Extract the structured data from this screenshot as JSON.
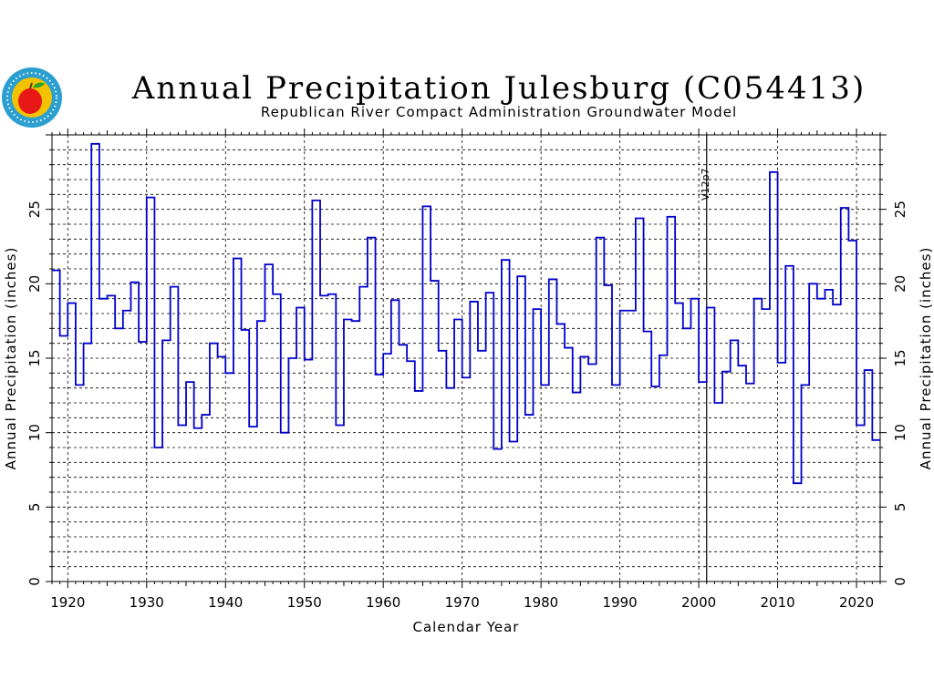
{
  "chart_data": {
    "type": "line",
    "title": "Annual Precipitation Julesburg (C054413)",
    "subtitle": "Republican River Compact Administration Groundwater Model",
    "xlabel": "Calendar Year",
    "ylabel_left": "Annual Precipitation (inches)",
    "ylabel_right": "Annual Precipitation (inches)",
    "xlim": [
      1918,
      2023
    ],
    "ylim": [
      0,
      30
    ],
    "x_ticks": [
      1920,
      1930,
      1940,
      1950,
      1960,
      1970,
      1980,
      1990,
      2000,
      2010,
      2020
    ],
    "y_ticks": [
      0,
      5,
      10,
      15,
      20,
      25
    ],
    "grid": true,
    "step": true,
    "marker_line": {
      "x": 2001,
      "label": "V12p7"
    },
    "series": [
      {
        "color": "#0000cc",
        "years": [
          1918,
          1919,
          1920,
          1921,
          1922,
          1923,
          1924,
          1925,
          1926,
          1927,
          1928,
          1929,
          1930,
          1931,
          1932,
          1933,
          1934,
          1935,
          1936,
          1937,
          1938,
          1939,
          1940,
          1941,
          1942,
          1943,
          1944,
          1945,
          1946,
          1947,
          1948,
          1949,
          1950,
          1951,
          1952,
          1953,
          1954,
          1955,
          1956,
          1957,
          1958,
          1959,
          1960,
          1961,
          1962,
          1963,
          1964,
          1965,
          1966,
          1967,
          1968,
          1969,
          1970,
          1971,
          1972,
          1973,
          1974,
          1975,
          1976,
          1977,
          1978,
          1979,
          1980,
          1981,
          1982,
          1983,
          1984,
          1985,
          1986,
          1987,
          1988,
          1989,
          1990,
          1991,
          1992,
          1993,
          1994,
          1995,
          1996,
          1997,
          1998,
          1999,
          2000,
          2001,
          2002,
          2003,
          2004,
          2005,
          2006,
          2007,
          2008,
          2009,
          2010,
          2011,
          2012,
          2013,
          2014,
          2015,
          2016,
          2017,
          2018,
          2019,
          2020,
          2021,
          2022
        ],
        "values": [
          20.9,
          16.5,
          18.7,
          13.2,
          16.0,
          29.4,
          19.0,
          19.2,
          17.0,
          18.2,
          20.1,
          16.1,
          25.8,
          9.0,
          16.2,
          19.8,
          10.5,
          13.4,
          10.3,
          11.2,
          16.0,
          15.1,
          14.0,
          21.7,
          16.9,
          10.4,
          17.5,
          21.3,
          19.3,
          10.0,
          15.0,
          18.4,
          14.9,
          25.6,
          19.2,
          19.3,
          10.5,
          17.6,
          17.5,
          19.8,
          23.1,
          13.9,
          15.3,
          18.9,
          15.9,
          14.8,
          12.8,
          25.2,
          20.2,
          15.5,
          13.0,
          17.6,
          13.7,
          18.8,
          15.5,
          19.4,
          8.9,
          21.6,
          9.4,
          20.5,
          11.2,
          18.3,
          13.2,
          20.3,
          17.3,
          15.7,
          12.7,
          15.1,
          14.6,
          23.1,
          19.9,
          13.2,
          18.2,
          18.2,
          24.4,
          16.8,
          13.1,
          15.2,
          24.5,
          18.7,
          17.0,
          19.0,
          13.4,
          18.4,
          12.0,
          14.1,
          16.2,
          14.5,
          13.3,
          19.0,
          18.3,
          27.5,
          14.7,
          21.2,
          6.6,
          13.2,
          20.0,
          19.0,
          19.6,
          18.6,
          25.1,
          22.9,
          10.5,
          14.2,
          9.5
        ]
      }
    ]
  },
  "logo": {
    "name": "rrca-logo",
    "ring_color": "#2a9fd0",
    "inner_color": "#f2c200",
    "apple_color": "#e81818",
    "leaf_color": "#2aa02a"
  }
}
